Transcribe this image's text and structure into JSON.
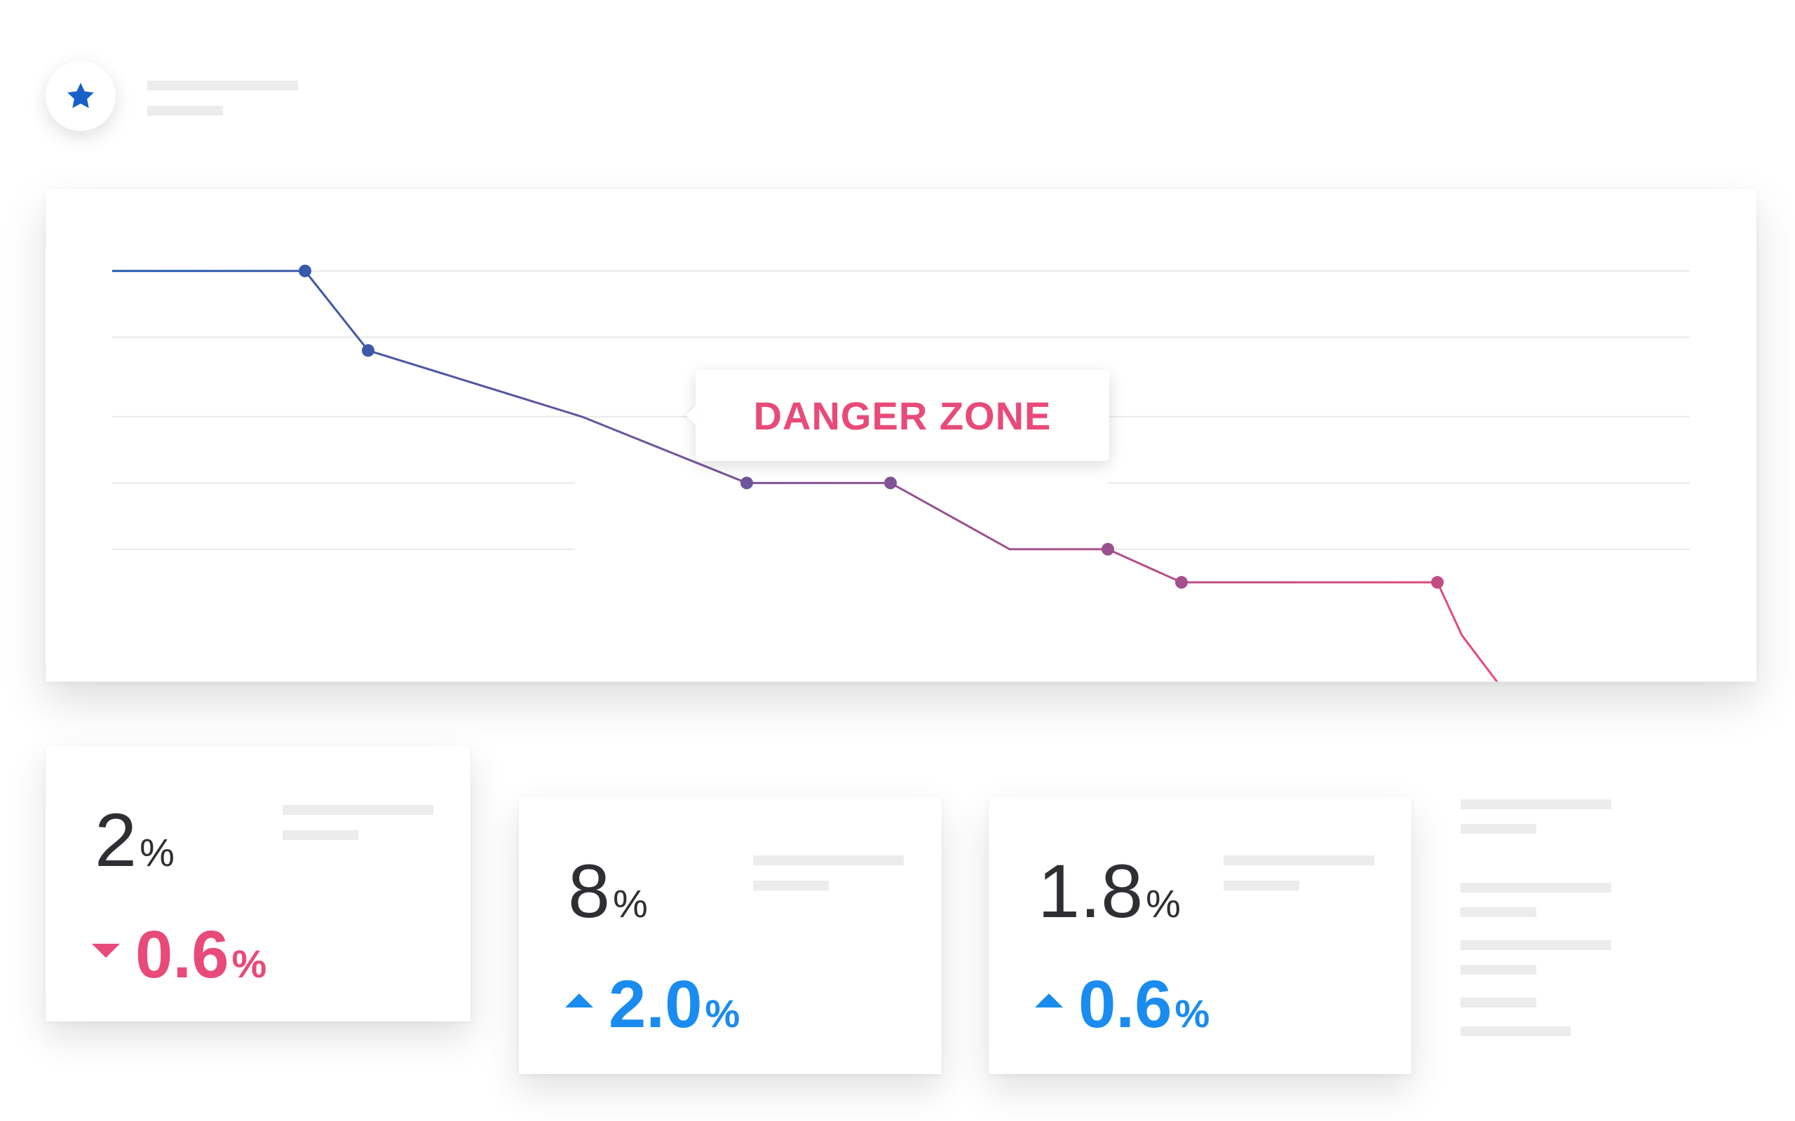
{
  "header": {
    "badge_icon": "star-icon",
    "badge_color": "#1660c8"
  },
  "tooltip": {
    "label": "DANGER ZONE",
    "color": "#e84a7a"
  },
  "chart_data": {
    "type": "line",
    "title": "",
    "xlabel": "",
    "ylabel": "",
    "grid": true,
    "legend": "none",
    "gradient": [
      "#1f5bb0",
      "#e84a7a"
    ],
    "x": [
      0,
      1,
      2,
      3,
      4,
      5,
      6,
      7,
      8,
      9,
      10,
      11
    ],
    "y": [
      10,
      10,
      8.8,
      7.8,
      6.8,
      6.8,
      5.8,
      5.8,
      5.3,
      5.3,
      4.5,
      3.8
    ],
    "markers": [
      false,
      true,
      true,
      false,
      true,
      true,
      false,
      true,
      true,
      true,
      false,
      false
    ],
    "ylim": [
      3.8,
      10.6
    ]
  },
  "stats": [
    {
      "value": "2",
      "unit": "%",
      "change": "0.6",
      "change_unit": "%",
      "direction": "down",
      "color": "#e84a7a"
    },
    {
      "value": "8",
      "unit": "%",
      "change": "2.0",
      "change_unit": "%",
      "direction": "up",
      "color": "#1a8cf0"
    },
    {
      "value": "1.8",
      "unit": "%",
      "change": "0.6",
      "change_unit": "%",
      "direction": "up",
      "color": "#1a8cf0"
    }
  ]
}
